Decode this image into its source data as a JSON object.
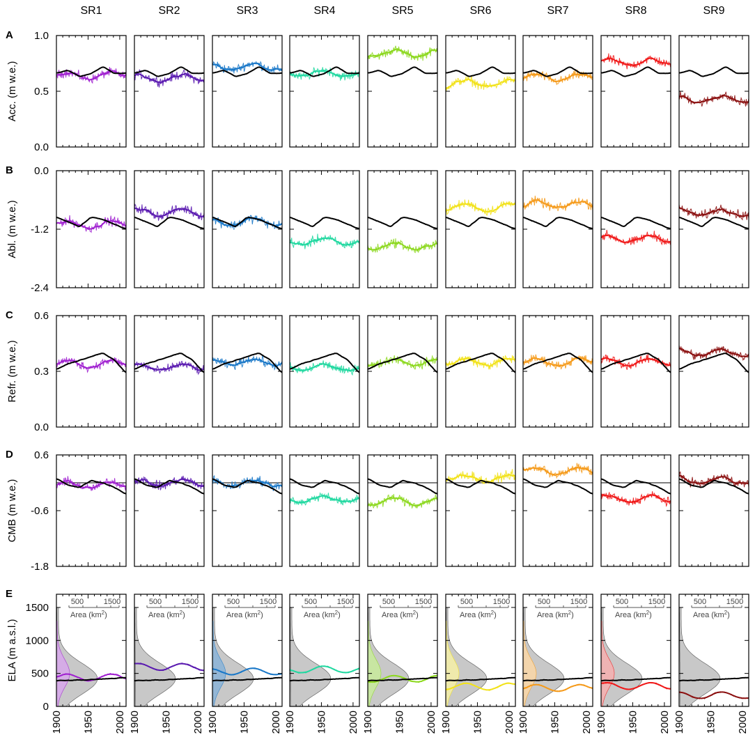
{
  "chart_data": {
    "type": "line",
    "layout": "small-multiples grid, 5 rows x 9 columns",
    "columns": [
      "SR1",
      "SR2",
      "SR3",
      "SR4",
      "SR5",
      "SR6",
      "SR7",
      "SR8",
      "SR9"
    ],
    "series_colors": [
      "#a020d0",
      "#5a1ab0",
      "#1a78c8",
      "#20d8a0",
      "#8cd81e",
      "#f2e21a",
      "#f59a1a",
      "#f01818",
      "#8b1010"
    ],
    "shade_colors": [
      "#d8a8ec",
      "",
      "#8ab4d8",
      "",
      "#c8ec9c",
      "#f6f0a8",
      "#fbd8a8",
      "#f6b0b0",
      ""
    ],
    "reference_color": "#000000",
    "x_axis": {
      "range": [
        1900,
        2010
      ],
      "tick_labels": [
        "1900",
        "1950",
        "2000"
      ]
    },
    "rows": [
      {
        "panel": "A",
        "ylabel": "Acc. (m w.e.)",
        "ylim": [
          0,
          1
        ],
        "yticks": [
          "0.0",
          "0.5",
          "1.0"
        ],
        "ytick_values": [
          0,
          0.5,
          1
        ],
        "zero_line": false,
        "reference_mean": [
          0.66,
          0.69,
          0.63,
          0.66,
          0.72,
          0.66,
          0.66
        ],
        "series_mean": [
          0.64,
          0.62,
          0.72,
          0.66,
          0.84,
          0.57,
          0.62,
          0.76,
          0.43
        ]
      },
      {
        "panel": "B",
        "ylabel": "Abl. (m w.e.)",
        "ylim": [
          -2.4,
          0
        ],
        "yticks": [
          "0.0",
          "-1.2",
          "-2.4"
        ],
        "ytick_values": [
          0,
          -1.2,
          -2.4
        ],
        "zero_line": false,
        "reference_mean": [
          -0.95,
          -1.05,
          -1.15,
          -0.95,
          -1.0,
          -1.1,
          -1.2
        ],
        "series_mean": [
          -1.1,
          -0.85,
          -1.05,
          -1.45,
          -1.55,
          -0.75,
          -0.7,
          -1.4,
          -0.85
        ]
      },
      {
        "panel": "C",
        "ylabel": "Refr. (m w.e.)",
        "ylim": [
          0,
          0.6
        ],
        "yticks": [
          "0.0",
          "0.3",
          "0.6"
        ],
        "ytick_values": [
          0,
          0.3,
          0.6
        ],
        "zero_line": false,
        "reference_mean": [
          0.31,
          0.34,
          0.36,
          0.38,
          0.4,
          0.36,
          0.29
        ],
        "series_mean": [
          0.34,
          0.32,
          0.35,
          0.32,
          0.35,
          0.35,
          0.35,
          0.35,
          0.4
        ]
      },
      {
        "panel": "D",
        "ylabel": "CMB (m w.e.)",
        "ylim": [
          -1.8,
          0.6
        ],
        "yticks": [
          "0.6",
          "-0.6",
          "-1.8"
        ],
        "ytick_values": [
          0.6,
          -0.6,
          -1.8
        ],
        "zero_line": true,
        "reference_mean": [
          0.1,
          -0.05,
          -0.1,
          0.05,
          0.0,
          -0.1,
          -0.25
        ],
        "series_mean": [
          -0.05,
          0.0,
          0.0,
          -0.35,
          -0.4,
          0.1,
          0.25,
          -0.35,
          0.05
        ]
      },
      {
        "panel": "E",
        "ylabel": "ELA (m a.s.l.)",
        "ylim": [
          0,
          1700
        ],
        "yticks": [
          "0",
          "500",
          "1000",
          "1500"
        ],
        "ytick_values": [
          0,
          500,
          1000,
          1500
        ],
        "zero_line": false,
        "reference_mean": [
          390,
          395,
          400,
          405,
          415,
          425,
          440
        ],
        "series_mean": [
          440,
          600,
          530,
          560,
          420,
          300,
          280,
          310,
          170
        ],
        "area_axis": {
          "label": "Area (km",
          "label_sup": "2",
          "label_end": ")",
          "tick_labels": [
            "500",
            "1500"
          ]
        }
      }
    ]
  }
}
